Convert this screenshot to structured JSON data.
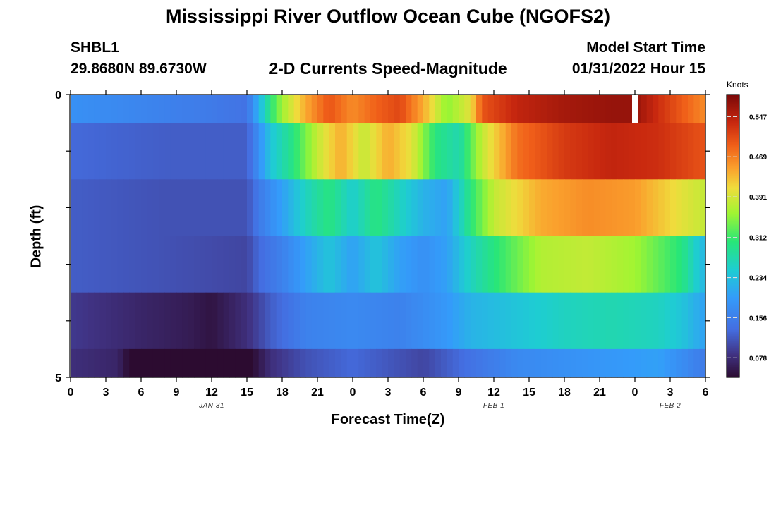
{
  "header": {
    "title": "Mississippi River Outflow Ocean Cube (NGOFS2)",
    "station": "SHBL1",
    "coords": "29.8680N  89.6730W",
    "subtitle": "2-D Currents Speed-Magnitude",
    "start_label": "Model Start Time",
    "start_value": "01/31/2022 Hour 15"
  },
  "footer": {
    "title": "Mississippi River Outflow Ocean Cube (NGOFS2)"
  },
  "chart_data": {
    "type": "heatmap",
    "title": "2-D Currents Speed-Magnitude",
    "xlabel": "Forecast Time(Z)",
    "ylabel": "Depth (ft)",
    "x_hours": [
      0,
      54
    ],
    "y_range": [
      0,
      5
    ],
    "x_tick_labels": [
      "0",
      "3",
      "6",
      "9",
      "12",
      "15",
      "18",
      "21",
      "0",
      "3",
      "6",
      "9",
      "12",
      "15",
      "18",
      "21",
      "0",
      "3",
      "6"
    ],
    "y_tick_labels": [
      "0",
      "5"
    ],
    "date_labels": [
      {
        "text": "JAN 31",
        "hour": 12
      },
      {
        "text": "FEB 1",
        "hour": 36
      },
      {
        "text": "FEB 2",
        "hour": 51
      }
    ],
    "colorbar": {
      "units": "Knots",
      "range": [
        0.04,
        0.59
      ],
      "ticks": [
        "0.547",
        "0.469",
        "0.391",
        "0.312",
        "0.234",
        "0.156",
        "0.078"
      ]
    },
    "layers": [
      {
        "depth": [
          0,
          0.5
        ],
        "points": [
          [
            0,
            0.18
          ],
          [
            4,
            0.17
          ],
          [
            8,
            0.16
          ],
          [
            12,
            0.15
          ],
          [
            15,
            0.14
          ],
          [
            16,
            0.22
          ],
          [
            17,
            0.3
          ],
          [
            18,
            0.36
          ],
          [
            20,
            0.44
          ],
          [
            22,
            0.5
          ],
          [
            24,
            0.46
          ],
          [
            26,
            0.49
          ],
          [
            28,
            0.51
          ],
          [
            30,
            0.44
          ],
          [
            32,
            0.35
          ],
          [
            34,
            0.4
          ],
          [
            35,
            0.5
          ],
          [
            38,
            0.54
          ],
          [
            42,
            0.56
          ],
          [
            46,
            0.57
          ],
          [
            48,
            0.57
          ],
          [
            50,
            0.53
          ],
          [
            54,
            0.46
          ]
        ]
      },
      {
        "depth": [
          0.5,
          1.5
        ],
        "points": [
          [
            0,
            0.13
          ],
          [
            8,
            0.12
          ],
          [
            15,
            0.12
          ],
          [
            16,
            0.18
          ],
          [
            17,
            0.24
          ],
          [
            19,
            0.3
          ],
          [
            21,
            0.38
          ],
          [
            23,
            0.44
          ],
          [
            25,
            0.38
          ],
          [
            27,
            0.44
          ],
          [
            29,
            0.4
          ],
          [
            31,
            0.3
          ],
          [
            33,
            0.27
          ],
          [
            35,
            0.38
          ],
          [
            38,
            0.48
          ],
          [
            42,
            0.52
          ],
          [
            46,
            0.54
          ],
          [
            50,
            0.53
          ],
          [
            54,
            0.5
          ]
        ]
      },
      {
        "depth": [
          1.5,
          2.5
        ],
        "points": [
          [
            0,
            0.12
          ],
          [
            8,
            0.11
          ],
          [
            15,
            0.11
          ],
          [
            16,
            0.15
          ],
          [
            18,
            0.2
          ],
          [
            20,
            0.26
          ],
          [
            22,
            0.3
          ],
          [
            24,
            0.25
          ],
          [
            26,
            0.3
          ],
          [
            28,
            0.26
          ],
          [
            30,
            0.22
          ],
          [
            32,
            0.2
          ],
          [
            34,
            0.3
          ],
          [
            36,
            0.38
          ],
          [
            40,
            0.44
          ],
          [
            44,
            0.46
          ],
          [
            48,
            0.45
          ],
          [
            52,
            0.4
          ],
          [
            54,
            0.38
          ]
        ]
      },
      {
        "depth": [
          2.5,
          3.5
        ],
        "points": [
          [
            0,
            0.12
          ],
          [
            8,
            0.11
          ],
          [
            15,
            0.1
          ],
          [
            16,
            0.13
          ],
          [
            18,
            0.16
          ],
          [
            20,
            0.2
          ],
          [
            22,
            0.24
          ],
          [
            24,
            0.2
          ],
          [
            26,
            0.24
          ],
          [
            28,
            0.2
          ],
          [
            30,
            0.18
          ],
          [
            32,
            0.2
          ],
          [
            34,
            0.26
          ],
          [
            36,
            0.3
          ],
          [
            40,
            0.37
          ],
          [
            44,
            0.38
          ],
          [
            48,
            0.36
          ],
          [
            52,
            0.3
          ],
          [
            54,
            0.22
          ]
        ]
      },
      {
        "depth": [
          3.5,
          4.5
        ],
        "points": [
          [
            0,
            0.09
          ],
          [
            6,
            0.07
          ],
          [
            10,
            0.06
          ],
          [
            12,
            0.05
          ],
          [
            15,
            0.08
          ],
          [
            17,
            0.12
          ],
          [
            20,
            0.16
          ],
          [
            24,
            0.17
          ],
          [
            28,
            0.16
          ],
          [
            32,
            0.19
          ],
          [
            34,
            0.22
          ],
          [
            38,
            0.24
          ],
          [
            42,
            0.26
          ],
          [
            46,
            0.27
          ],
          [
            50,
            0.26
          ],
          [
            52,
            0.24
          ],
          [
            54,
            0.2
          ]
        ]
      },
      {
        "depth": [
          4.5,
          5
        ],
        "points": [
          [
            0,
            0.08
          ],
          [
            4,
            0.07
          ],
          [
            5,
            0.04
          ],
          [
            9,
            0.02
          ],
          [
            12,
            0.01
          ],
          [
            15,
            0.03
          ],
          [
            17,
            0.08
          ],
          [
            20,
            0.11
          ],
          [
            24,
            0.13
          ],
          [
            28,
            0.11
          ],
          [
            30,
            0.1
          ],
          [
            34,
            0.14
          ],
          [
            38,
            0.17
          ],
          [
            42,
            0.18
          ],
          [
            46,
            0.19
          ],
          [
            50,
            0.2
          ],
          [
            54,
            0.15
          ]
        ]
      }
    ],
    "missing": [
      {
        "hour": 48,
        "depth": [
          0,
          0.5
        ]
      }
    ]
  }
}
